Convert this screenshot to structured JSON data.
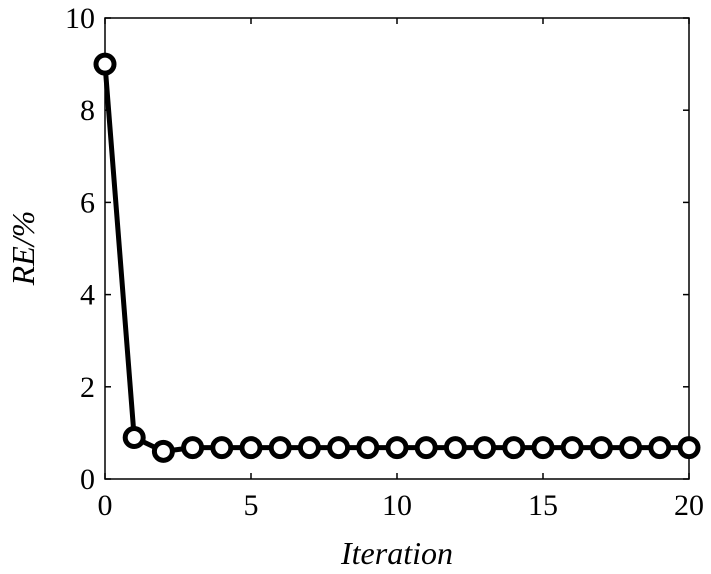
{
  "chart_data": {
    "type": "line",
    "xlabel": "Iteration",
    "ylabel": "RE/%",
    "xlim": [
      0,
      20
    ],
    "ylim": [
      0,
      10
    ],
    "xticks": [
      0,
      5,
      10,
      15,
      20
    ],
    "yticks": [
      0,
      2,
      4,
      6,
      8,
      10
    ],
    "grid": false,
    "series": [
      {
        "color": "#000000",
        "marker": "circle",
        "x": [
          0,
          1,
          2,
          3,
          4,
          5,
          6,
          7,
          8,
          9,
          10,
          11,
          12,
          13,
          14,
          15,
          16,
          17,
          18,
          19,
          20
        ],
        "y": [
          9.0,
          0.9,
          0.6,
          0.68,
          0.68,
          0.68,
          0.68,
          0.68,
          0.68,
          0.68,
          0.68,
          0.68,
          0.68,
          0.68,
          0.68,
          0.68,
          0.68,
          0.68,
          0.68,
          0.68,
          0.68
        ]
      }
    ]
  }
}
